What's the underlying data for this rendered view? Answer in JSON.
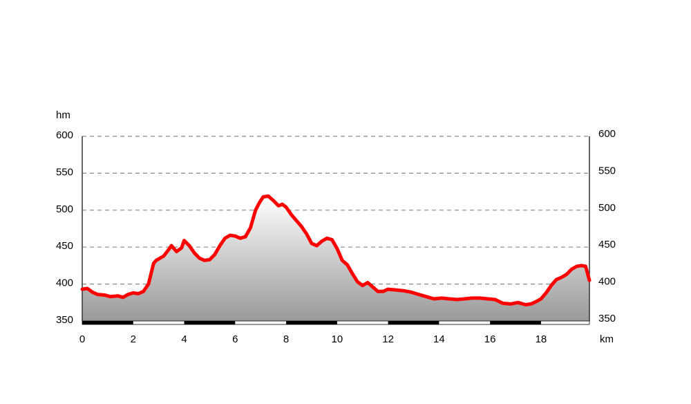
{
  "chart_data": {
    "type": "area",
    "title": "",
    "ylabel": "hm",
    "xlabel": "km",
    "xlim": [
      0,
      19.9
    ],
    "ylim": [
      350,
      600
    ],
    "x_ticks": [
      0,
      2,
      4,
      6,
      8,
      10,
      12,
      14,
      16,
      18
    ],
    "x_tick_labels": [
      "0",
      "2",
      "4",
      "6",
      "8",
      "10",
      "12",
      "14",
      "16",
      "18"
    ],
    "y_ticks": [
      350,
      400,
      450,
      500,
      550,
      600
    ],
    "y_tick_labels": [
      "350",
      "400",
      "450",
      "500",
      "550",
      "600"
    ],
    "grid": "horizontal-dashed",
    "line_color": "#ff0000",
    "fill_gradient": [
      "#ffffff",
      "#999999"
    ],
    "distance_scale_bar": "alternating black/white every 2 km",
    "series": [
      {
        "x": [
          0,
          0.2,
          0.4,
          0.6,
          0.9,
          1.1,
          1.4,
          1.6,
          1.8,
          2.0,
          2.2,
          2.4,
          2.6,
          2.8,
          2.9,
          3.0,
          3.2,
          3.4,
          3.5,
          3.7,
          3.9,
          4.0,
          4.2,
          4.4,
          4.6,
          4.8,
          5.0,
          5.2,
          5.4,
          5.6,
          5.8,
          6.0,
          6.2,
          6.4,
          6.6,
          6.8,
          6.95,
          7.1,
          7.3,
          7.5,
          7.7,
          7.85,
          8.0,
          8.2,
          8.4,
          8.6,
          8.8,
          9.0,
          9.2,
          9.4,
          9.6,
          9.8,
          10.0,
          10.2,
          10.4,
          10.6,
          10.8,
          11.0,
          11.2,
          11.4,
          11.6,
          11.8,
          12.0,
          12.3,
          12.6,
          12.9,
          13.2,
          13.5,
          13.8,
          14.1,
          14.4,
          14.7,
          15.0,
          15.3,
          15.6,
          15.9,
          16.2,
          16.5,
          16.8,
          17.1,
          17.4,
          17.6,
          17.8,
          18.0,
          18.2,
          18.4,
          18.6,
          18.8,
          19.0,
          19.2,
          19.4,
          19.6,
          19.75,
          19.9
        ],
        "values": [
          393,
          394,
          389,
          386,
          385,
          383,
          384,
          382,
          386,
          388,
          387,
          390,
          400,
          428,
          432,
          434,
          438,
          447,
          452,
          444,
          449,
          459,
          452,
          442,
          435,
          432,
          433,
          440,
          452,
          462,
          466,
          465,
          462,
          464,
          476,
          500,
          510,
          518,
          519,
          513,
          506,
          508,
          504,
          494,
          486,
          478,
          468,
          455,
          452,
          458,
          462,
          460,
          448,
          432,
          426,
          414,
          403,
          398,
          402,
          396,
          390,
          390,
          393,
          392,
          391,
          389,
          386,
          383,
          380,
          381,
          380,
          379,
          380,
          381,
          381,
          380,
          379,
          374,
          373,
          375,
          372,
          373,
          376,
          380,
          388,
          398,
          406,
          409,
          413,
          420,
          424,
          425,
          424,
          405
        ]
      }
    ]
  }
}
